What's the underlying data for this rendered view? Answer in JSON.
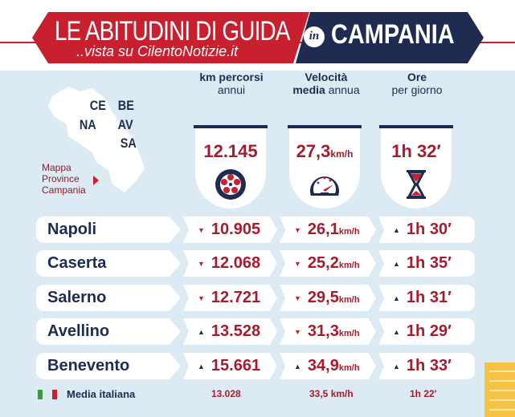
{
  "header": {
    "title": "LE ABITUDINI DI GUIDA",
    "subtitle": "..vista su CilentoNotizie.it",
    "in_badge": "in",
    "region": "CAMPANIA"
  },
  "map": {
    "provinces": [
      "CE",
      "BE",
      "NA",
      "AV",
      "SA"
    ],
    "legend": [
      "Mappa",
      "Province",
      "Campania"
    ]
  },
  "columns": [
    {
      "title": "km percorsi",
      "subtitle": "annui",
      "value": "12.145",
      "unit": "",
      "icon": "tire-icon"
    },
    {
      "title": "Velocità",
      "title2": "media",
      "subtitle": "annua",
      "value": "27,3",
      "unit": "km/h",
      "icon": "speedometer-icon"
    },
    {
      "title": "Ore",
      "subtitle": "per giorno",
      "value": "1h 32′",
      "unit": "",
      "icon": "hourglass-icon"
    }
  ],
  "rows": [
    {
      "name": "Napoli",
      "km": "10.905",
      "km_trend": "down",
      "speed": "26,1",
      "speed_trend": "down",
      "hours": "1h 30′",
      "hours_trend": "up"
    },
    {
      "name": "Caserta",
      "km": "12.068",
      "km_trend": "down",
      "speed": "25,2",
      "speed_trend": "down",
      "hours": "1h 35′",
      "hours_trend": "up"
    },
    {
      "name": "Salerno",
      "km": "12.721",
      "km_trend": "down",
      "speed": "29,5",
      "speed_trend": "down",
      "hours": "1h 31′",
      "hours_trend": "up"
    },
    {
      "name": "Avellino",
      "km": "13.528",
      "km_trend": "up",
      "speed": "31,3",
      "speed_trend": "down",
      "hours": "1h 29′",
      "hours_trend": "up"
    },
    {
      "name": "Benevento",
      "km": "15.661",
      "km_trend": "up",
      "speed": "34,9",
      "speed_trend": "up",
      "hours": "1h 33′",
      "hours_trend": "up"
    }
  ],
  "speed_unit": "km/h",
  "footer": {
    "label": "Media italiana",
    "km": "13.028",
    "speed": "33,5 km/h",
    "hours": "1h 22′"
  },
  "colors": {
    "red": "#c8202f",
    "navy": "#1f2b50",
    "background": "#dcebf3"
  }
}
